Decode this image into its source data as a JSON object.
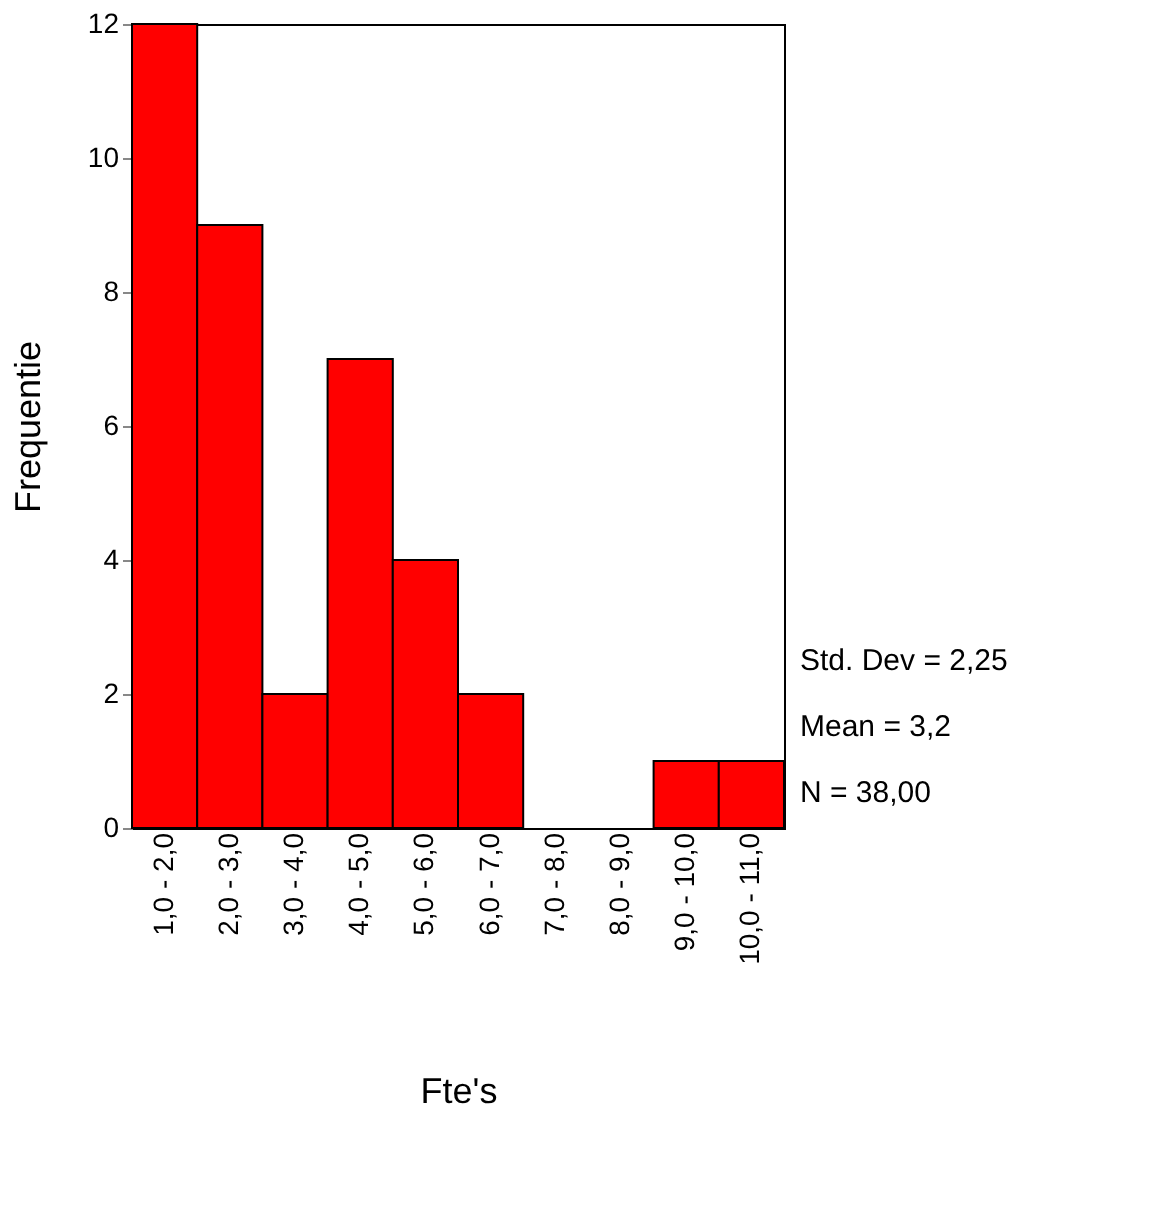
{
  "chart_data": {
    "type": "bar",
    "xlabel": "Fte's",
    "ylabel": "Frequentie",
    "categories": [
      "1,0 - 2,0",
      "2,0 - 3,0",
      "3,0 - 4,0",
      "4,0 - 5,0",
      "5,0 - 6,0",
      "6,0 - 7,0",
      "7,0 - 8,0",
      "8,0 - 9,0",
      "9,0 - 10,0",
      "10,0 - 11,0"
    ],
    "values": [
      12,
      9,
      2,
      7,
      4,
      2,
      0,
      0,
      1,
      1
    ],
    "color": "#ff0000",
    "ylim": [
      0,
      12
    ],
    "yticks": [
      0,
      2,
      4,
      6,
      8,
      10,
      12
    ],
    "grid": false,
    "annotations": [
      "Std. Dev = 2,25",
      "Mean = 3,2",
      "N = 38,00"
    ]
  }
}
